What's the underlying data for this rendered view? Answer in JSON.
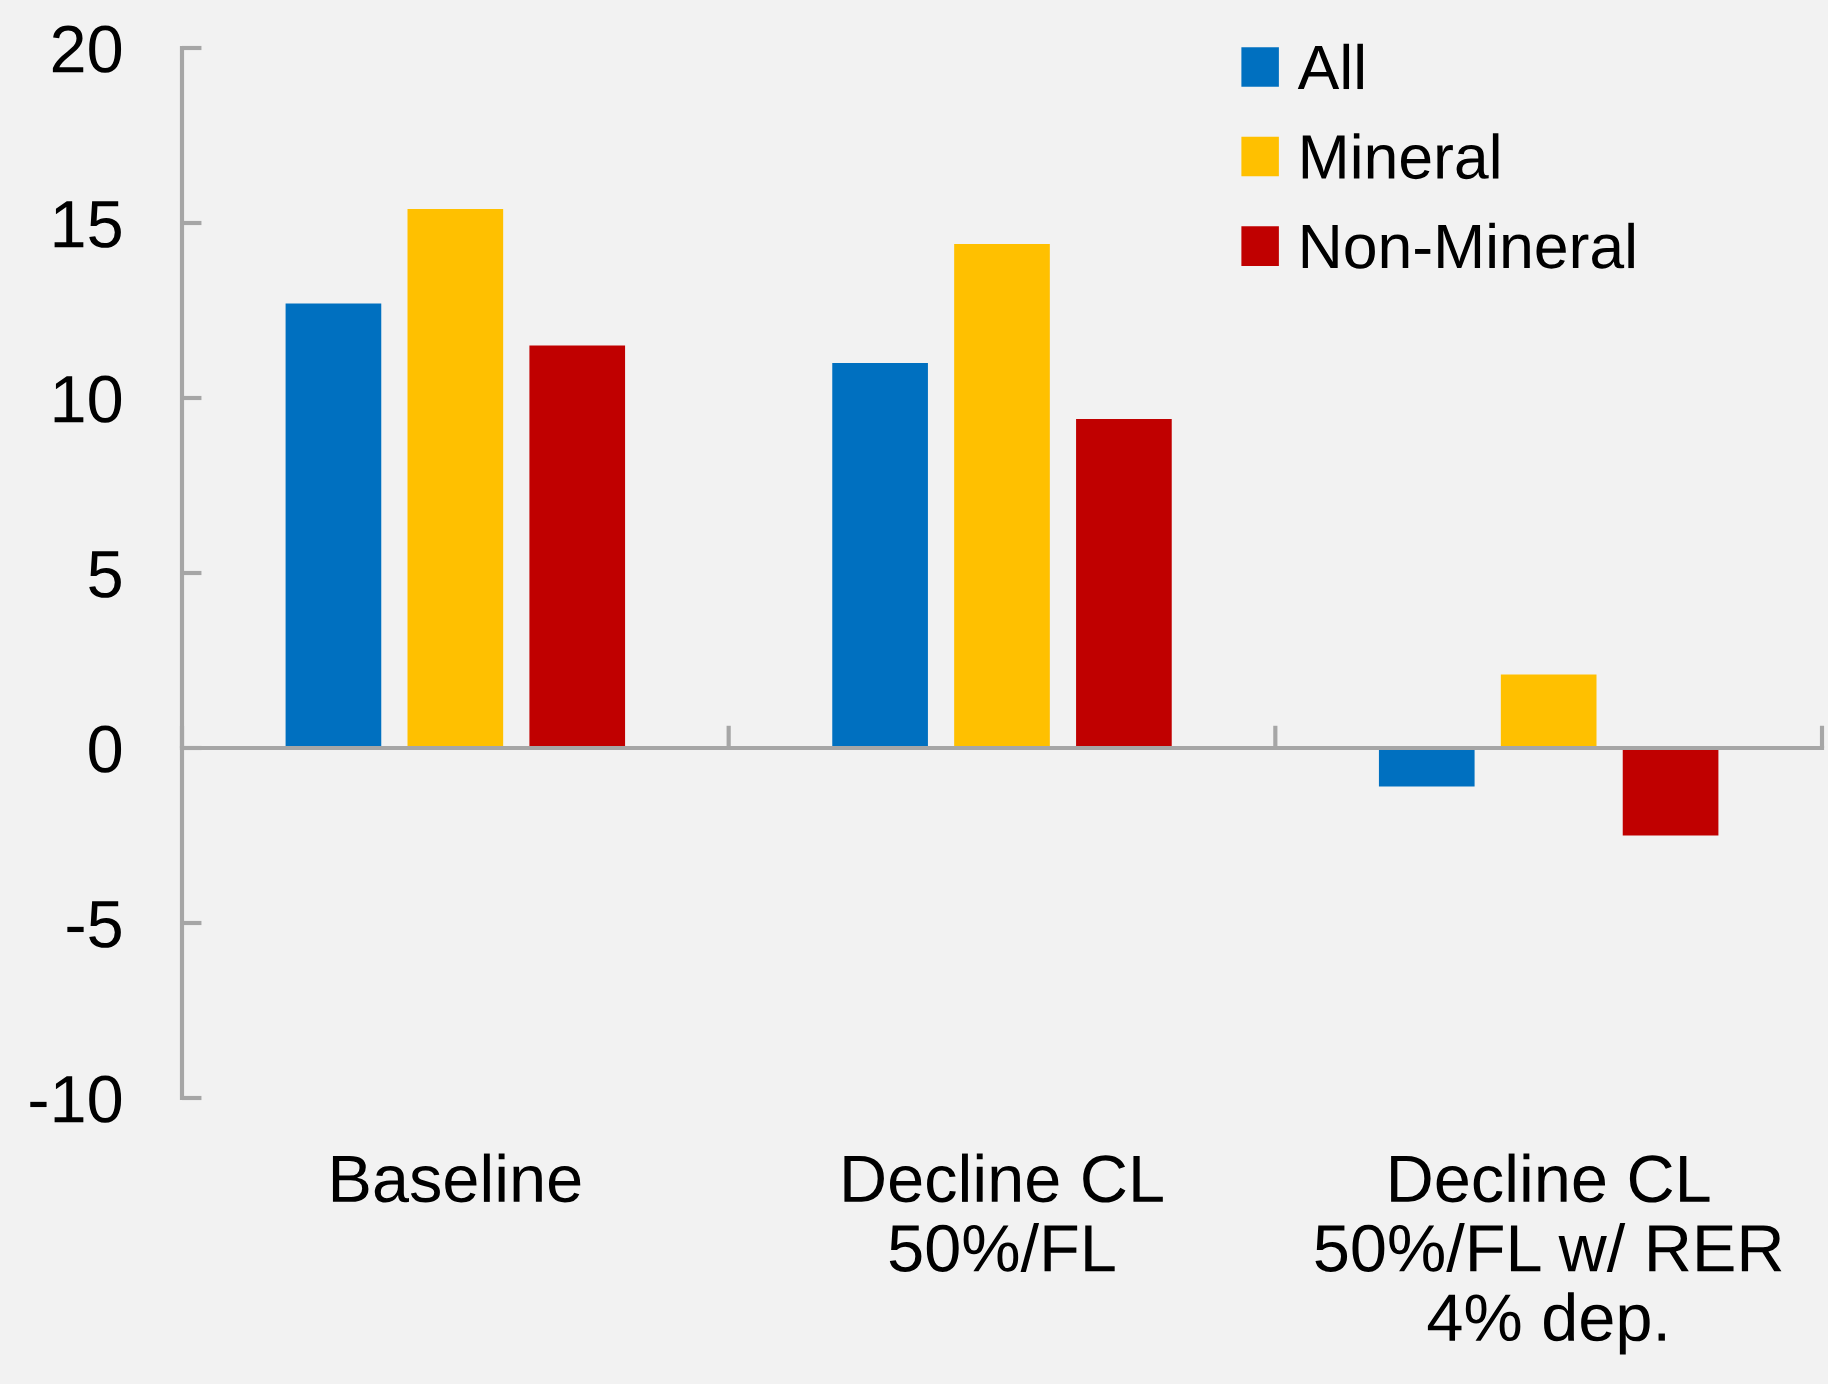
{
  "chart_data": {
    "type": "bar",
    "categories": [
      "Baseline",
      "Decline CL\n50%/FL",
      "Decline CL\n50%/FL w/ RER\n4% dep."
    ],
    "series": [
      {
        "name": "All",
        "color": "#0070c0",
        "values": [
          12.7,
          11.0,
          -1.1
        ]
      },
      {
        "name": "Mineral",
        "color": "#ffc000",
        "values": [
          15.4,
          14.4,
          2.1
        ]
      },
      {
        "name": "Non-Mineral",
        "color": "#c00000",
        "values": [
          11.5,
          9.4,
          -2.5
        ]
      }
    ],
    "ylim": [
      -10,
      20
    ],
    "yticks": [
      -10,
      -5,
      0,
      5,
      10,
      15,
      20
    ],
    "legend": "top right"
  }
}
